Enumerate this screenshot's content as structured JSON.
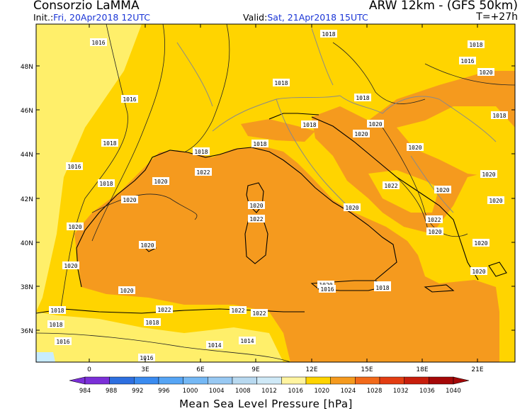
{
  "header": {
    "source": "Consorzio LaMMA",
    "model": "ARW 12km - (GFS 50km)",
    "init_label": "Init.:",
    "init_value": "Fri, 20Apr2018 12UTC",
    "valid_label": "Valid:",
    "valid_value": "Sat, 21Apr2018 15UTC",
    "lead_time": "T=+27h"
  },
  "map": {
    "lat_labels": [
      "48N",
      "46N",
      "44N",
      "42N",
      "40N",
      "38N",
      "36N"
    ],
    "lon_labels": [
      "0",
      "3E",
      "6E",
      "9E",
      "12E",
      "15E",
      "18E",
      "21E"
    ],
    "isobar_labels": [
      "1016",
      "1018",
      "1018",
      "1016",
      "1020",
      "1018",
      "1018",
      "1016",
      "1018",
      "1018",
      "1016",
      "1018",
      "1018",
      "1018",
      "1018",
      "1020",
      "1020",
      "1020",
      "1020",
      "1020",
      "1020",
      "1020",
      "1020",
      "1020",
      "1020",
      "1020",
      "1020",
      "1020",
      "1020",
      "1020",
      "1020",
      "1020",
      "1020",
      "1020",
      "1022",
      "1022",
      "1022",
      "1022",
      "1022",
      "1022",
      "1022",
      "1018",
      "1018",
      "1018",
      "1016",
      "1016",
      "1014",
      "1014",
      "1016",
      "1018"
    ],
    "colors": {
      "sea_high": "#f59a1e",
      "land_mid": "#ffd400",
      "low_band": "#ffef6a",
      "very_low": "#c8ecff",
      "border": "#8a8a8a",
      "coast": "#000000"
    }
  },
  "colorbar": {
    "title": "Mean Sea Level Pressure [hPa]",
    "labels": [
      "984",
      "988",
      "992",
      "996",
      "1000",
      "1004",
      "1008",
      "1012",
      "1016",
      "1020",
      "1024",
      "1028",
      "1032",
      "1036",
      "1040"
    ],
    "colors": [
      "#7b2fd8",
      "#2e6fe0",
      "#3a8bf0",
      "#56a5f5",
      "#74b8f5",
      "#98c9f3",
      "#b8d9f0",
      "#cfe9f7",
      "#fff4a0",
      "#ffd400",
      "#f59a1e",
      "#f26a1a",
      "#e33d12",
      "#c81e0c",
      "#a50808"
    ]
  }
}
